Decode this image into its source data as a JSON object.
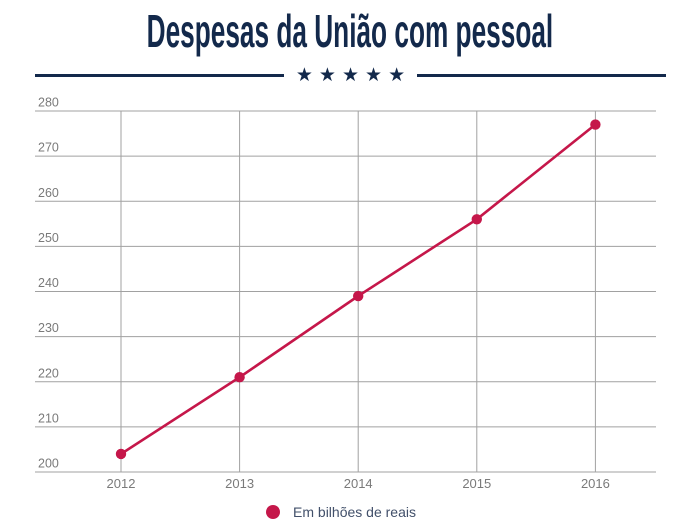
{
  "title": "Despesas da União com pessoal",
  "ornament": {
    "stars": "★ ★ ★ ★ ★"
  },
  "legend": {
    "label": "Em bilhões de reais"
  },
  "colors": {
    "navy": "#13294b",
    "accent": "#c5174a",
    "grid": "#a1a1a1",
    "tick_label": "#7a7a7a",
    "legend_text": "#42506a",
    "background": "#ffffff"
  },
  "chart_data": {
    "type": "line",
    "title": "Despesas da União com pessoal",
    "categories": [
      "2012",
      "2013",
      "2014",
      "2015",
      "2016"
    ],
    "series": [
      {
        "name": "Em bilhões de reais",
        "color": "#c5174a",
        "values": [
          204,
          221,
          239,
          256,
          277
        ]
      }
    ],
    "xlabel": "",
    "ylabel": "",
    "ylim": [
      200,
      280
    ],
    "yticks": [
      200,
      210,
      220,
      230,
      240,
      250,
      260,
      270,
      280
    ],
    "grid": true,
    "legend_position": "bottom",
    "marker": "circle"
  }
}
